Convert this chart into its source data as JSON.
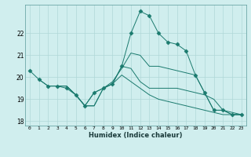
{
  "title": "",
  "xlabel": "Humidex (Indice chaleur)",
  "ylabel": "",
  "background_color": "#d0eeee",
  "line_color": "#1a7a6e",
  "grid_color": "#b0d8d8",
  "xlim": [
    -0.5,
    23.5
  ],
  "ylim": [
    17.8,
    23.3
  ],
  "yticks": [
    18,
    19,
    20,
    21,
    22
  ],
  "xticks": [
    0,
    1,
    2,
    3,
    4,
    5,
    6,
    7,
    8,
    9,
    10,
    11,
    12,
    13,
    14,
    15,
    16,
    17,
    18,
    19,
    20,
    21,
    22,
    23
  ],
  "lines": [
    {
      "x": [
        0,
        1,
        2,
        3,
        4,
        5,
        6,
        7,
        8,
        9,
        10,
        11,
        12,
        13,
        14,
        15,
        16,
        17,
        18,
        19,
        20,
        21,
        22,
        23
      ],
      "y": [
        20.3,
        19.9,
        19.6,
        19.6,
        19.5,
        19.2,
        18.7,
        19.3,
        19.5,
        19.7,
        20.5,
        22.0,
        23.0,
        22.8,
        22.0,
        21.6,
        21.5,
        21.2,
        20.1,
        19.3,
        18.5,
        18.5,
        18.3,
        18.3
      ],
      "marker": "D",
      "markersize": 2.5
    },
    {
      "x": [
        1,
        2,
        3,
        4,
        5,
        6,
        7,
        8,
        9,
        10,
        11,
        12,
        13,
        14,
        15,
        16,
        17,
        18,
        19,
        20,
        21,
        22,
        23
      ],
      "y": [
        19.9,
        19.6,
        19.6,
        19.6,
        19.2,
        18.7,
        19.3,
        19.5,
        19.8,
        20.4,
        21.1,
        21.0,
        20.5,
        20.5,
        20.4,
        20.3,
        20.2,
        20.1,
        19.3,
        18.5,
        18.5,
        18.3,
        18.3
      ],
      "marker": null,
      "markersize": 0
    },
    {
      "x": [
        2,
        3,
        4,
        5,
        6,
        7,
        8,
        9,
        10,
        11,
        12,
        13,
        14,
        15,
        16,
        17,
        18,
        19,
        20,
        21,
        22,
        23
      ],
      "y": [
        19.6,
        19.6,
        19.6,
        19.2,
        18.7,
        18.7,
        19.5,
        19.7,
        20.5,
        20.4,
        19.8,
        19.5,
        19.5,
        19.5,
        19.5,
        19.4,
        19.3,
        19.2,
        19.0,
        18.5,
        18.4,
        18.3
      ],
      "marker": null,
      "markersize": 0
    },
    {
      "x": [
        3,
        4,
        5,
        6,
        7,
        8,
        9,
        10,
        11,
        12,
        13,
        14,
        15,
        16,
        17,
        18,
        19,
        20,
        21,
        22,
        23
      ],
      "y": [
        19.6,
        19.6,
        19.2,
        18.7,
        18.7,
        19.5,
        19.7,
        20.1,
        19.8,
        19.5,
        19.2,
        19.0,
        18.9,
        18.8,
        18.7,
        18.6,
        18.5,
        18.4,
        18.3,
        18.3,
        18.3
      ],
      "marker": null,
      "markersize": 0
    }
  ]
}
